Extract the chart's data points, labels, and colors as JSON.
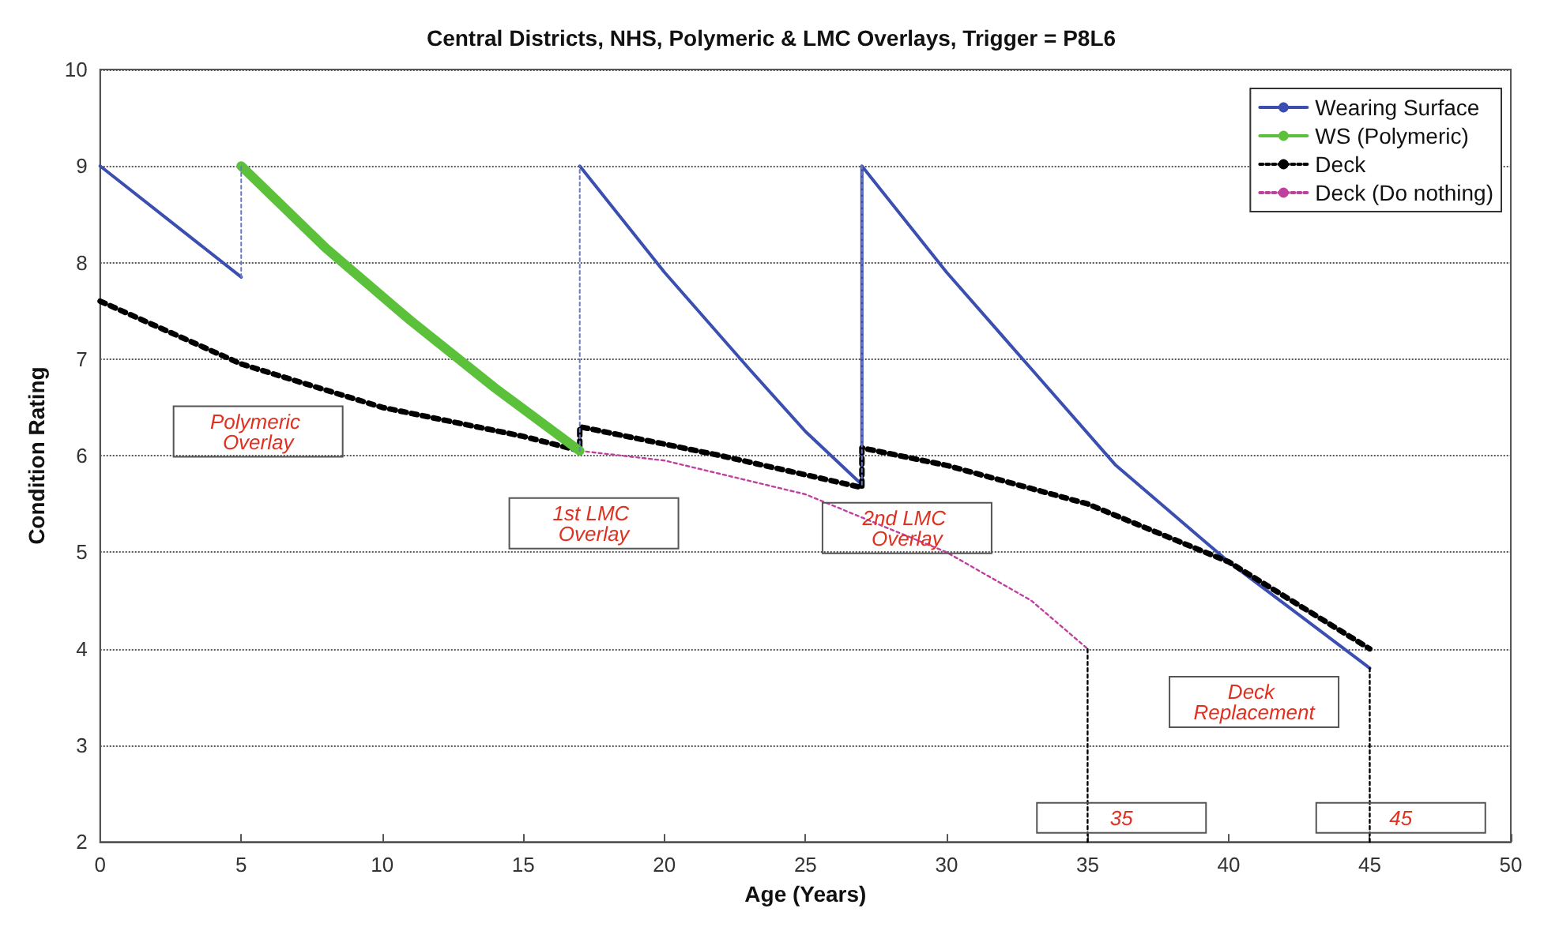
{
  "chart_data": {
    "type": "line",
    "title": "Central Districts, NHS, Polymeric & LMC Overlays, Trigger = P8L6",
    "xlabel": "Age (Years)",
    "ylabel": "Condition Rating",
    "xlim": [
      0,
      50
    ],
    "xticks": [
      0,
      5,
      10,
      15,
      20,
      25,
      30,
      35,
      40,
      45,
      50
    ],
    "ylim": [
      2,
      10
    ],
    "yticks": [
      2,
      3,
      4,
      5,
      6,
      7,
      8,
      9,
      10
    ],
    "grid": "y",
    "legend": "top right",
    "line_style": "solid",
    "marker": "none",
    "series": [
      {
        "name": "Wearing Surface",
        "color": "#3a4fb0",
        "x": [
          17,
          20,
          23,
          25,
          27,
          27,
          30,
          33,
          36,
          40,
          45
        ],
        "values": [
          9,
          7.9,
          6.9,
          6.25,
          5.7,
          9,
          7.9,
          6.9,
          5.9,
          4.9,
          3.8
        ]
      },
      {
        "name": "WS (Polymeric)",
        "color": "#5cc13a",
        "x": [
          5,
          8,
          11,
          14,
          17
        ],
        "values": [
          9,
          8.15,
          7.4,
          6.7,
          6.05
        ]
      },
      {
        "name": "Deck",
        "color": "#000000",
        "line_style": "dotted",
        "x": [
          0,
          5,
          10,
          15,
          17,
          17,
          22,
          27,
          27,
          30,
          35,
          40,
          45
        ],
        "values": [
          7.6,
          6.95,
          6.5,
          6.2,
          6.05,
          6.3,
          6.0,
          5.67,
          6.08,
          5.9,
          5.5,
          4.9,
          4.0
        ]
      },
      {
        "name": "Deck (Do nothing)",
        "color": "#c040a0",
        "line_style": "dashed",
        "x": [
          17,
          20,
          25,
          30,
          33,
          35
        ],
        "values": [
          6.05,
          5.95,
          5.6,
          5.0,
          4.5,
          4.0
        ]
      },
      {
        "color": "#6a78c8",
        "line_style": "dashed",
        "x": [
          5,
          5
        ],
        "values": [
          7.85,
          9
        ]
      },
      {
        "color": "#6a78c8",
        "line_style": "dashed",
        "x": [
          17,
          17
        ],
        "values": [
          6.05,
          9
        ]
      },
      {
        "color": "#6a78c8",
        "line_style": "dashed",
        "x": [
          27,
          27
        ],
        "values": [
          5.7,
          9
        ]
      },
      {
        "color": "#000000",
        "line_style": "dashed",
        "x": [
          35,
          35
        ],
        "values": [
          2,
          4
        ]
      },
      {
        "color": "#000000",
        "line_style": "dashed",
        "x": [
          45,
          45
        ],
        "values": [
          2,
          3.8
        ]
      },
      {
        "color": "#3a4fb0",
        "x": [
          0,
          5
        ],
        "values": [
          9,
          7.85
        ]
      }
    ],
    "annotations": [
      "Polymeric Overlay",
      "1st LMC Overlay",
      "2nd LMC Overlay",
      "Deck Replacement",
      "35",
      "45"
    ]
  }
}
